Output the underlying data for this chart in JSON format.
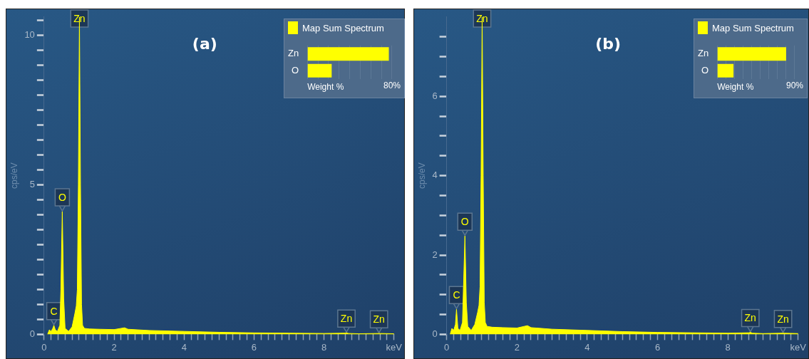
{
  "chart_data": [
    {
      "type": "area",
      "title": "(a)",
      "ylabel": "cps/eV",
      "xlim": [
        0,
        10
      ],
      "xticks": [
        0,
        {
          "value": 0.2,
          "label": null
        },
        {
          "value": 0.4,
          "label": null
        },
        {
          "value": 0.6,
          "label": null
        },
        {
          "value": 0.8,
          "label": null
        },
        {
          "value": 1,
          "label": null
        },
        {
          "value": 1.2,
          "label": null
        },
        {
          "value": 1.4,
          "label": null
        },
        {
          "value": 1.6,
          "label": null
        },
        {
          "value": 1.8,
          "label": null
        },
        2,
        {
          "value": 2.2,
          "label": null
        },
        {
          "value": 2.4,
          "label": null
        },
        {
          "value": 2.6,
          "label": null
        },
        {
          "value": 2.8,
          "label": null
        },
        {
          "value": 3,
          "label": null
        },
        {
          "value": 3.2,
          "label": null
        },
        {
          "value": 3.4,
          "label": null
        },
        {
          "value": 3.6,
          "label": null
        },
        {
          "value": 3.8,
          "label": null
        },
        4,
        {
          "value": 4.2,
          "label": null
        },
        {
          "value": 4.4,
          "label": null
        },
        {
          "value": 4.6,
          "label": null
        },
        {
          "value": 4.8,
          "label": null
        },
        {
          "value": 5,
          "label": null
        },
        {
          "value": 5.2,
          "label": null
        },
        {
          "value": 5.4,
          "label": null
        },
        {
          "value": 5.6,
          "label": null
        },
        {
          "value": 5.8,
          "label": null
        },
        6,
        {
          "value": 6.2,
          "label": null
        },
        {
          "value": 6.4,
          "label": null
        },
        {
          "value": 6.6,
          "label": null
        },
        {
          "value": 6.8,
          "label": null
        },
        {
          "value": 7,
          "label": null
        },
        {
          "value": 7.2,
          "label": null
        },
        {
          "value": 7.4,
          "label": null
        },
        {
          "value": 7.6,
          "label": null
        },
        {
          "value": 7.8,
          "label": null
        },
        8,
        {
          "value": 8.2,
          "label": null
        },
        {
          "value": 8.4,
          "label": null
        },
        {
          "value": 8.6,
          "label": null
        },
        {
          "value": 8.8,
          "label": null
        },
        {
          "value": 9,
          "label": null
        },
        {
          "value": 9.2,
          "label": null
        },
        {
          "value": 9.4,
          "label": null
        },
        {
          "value": 9.6,
          "label": null
        },
        {
          "value": 9.8,
          "label": null
        },
        {
          "value": 10,
          "label": "keV"
        }
      ],
      "ylim": [
        0,
        10.6
      ],
      "yticks": [
        0,
        {
          "value": 0.5,
          "label": null
        },
        {
          "value": 1,
          "label": null
        },
        {
          "value": 1.5,
          "label": null
        },
        {
          "value": 2,
          "label": null
        },
        {
          "value": 2.5,
          "label": null
        },
        {
          "value": 3,
          "label": null
        },
        {
          "value": 3.5,
          "label": null
        },
        {
          "value": 4,
          "label": null
        },
        {
          "value": 4.5,
          "label": null
        },
        5,
        {
          "value": 5.5,
          "label": null
        },
        {
          "value": 6,
          "label": null
        },
        {
          "value": 6.5,
          "label": null
        },
        {
          "value": 7,
          "label": null
        },
        {
          "value": 7.5,
          "label": null
        },
        {
          "value": 8,
          "label": null
        },
        {
          "value": 8.5,
          "label": null
        },
        {
          "value": 9,
          "label": null
        },
        {
          "value": 9.5,
          "label": null
        },
        10,
        {
          "value": 10.5,
          "label": null
        }
      ],
      "grid": false,
      "legend": "top right",
      "series": [
        {
          "name": "Map Sum Spectrum",
          "color": "#ffff00",
          "x": [
            0.1,
            0.15,
            0.2,
            0.25,
            0.28,
            0.32,
            0.38,
            0.45,
            0.48,
            0.52,
            0.56,
            0.6,
            0.7,
            0.8,
            0.88,
            0.92,
            0.95,
            0.98,
            1.01,
            1.04,
            1.07,
            1.1,
            1.15,
            1.3,
            1.6,
            2,
            2.3,
            2.4,
            3,
            4,
            5,
            6,
            7,
            8,
            8.6,
            8.64,
            8.7,
            9,
            9.57,
            10
          ],
          "values": [
            0,
            0.15,
            0.1,
            0.2,
            0.3,
            0.15,
            0.1,
            0.3,
            1.5,
            4.1,
            1.2,
            0.2,
            0.1,
            0.25,
            0.7,
            0.95,
            1.5,
            5,
            10.6,
            5,
            1,
            0.3,
            0.2,
            0.18,
            0.17,
            0.16,
            0.22,
            0.17,
            0.13,
            0.1,
            0.07,
            0.05,
            0.04,
            0.03,
            0.04,
            0.05,
            0.03,
            0.02,
            0.03,
            0.02
          ]
        }
      ],
      "annotations": [
        {
          "text": "C",
          "x": 0.28,
          "y": 0.3
        },
        {
          "text": "O",
          "x": 0.52,
          "y": 4.1
        },
        {
          "text": "Zn",
          "x": 1.01,
          "y": 10.6
        },
        {
          "text": "Zn",
          "x": 8.64,
          "y": 0.05
        },
        {
          "text": "Zn",
          "x": 9.57,
          "y": 0.03
        }
      ]
    },
    {
      "type": "bar",
      "orientation": "horizontal",
      "categories": [
        "Zn",
        "O"
      ],
      "values": [
        77,
        23
      ],
      "color": "#ffff00",
      "xlim": [
        0,
        80
      ],
      "xticks": [
        {
          "value": 0,
          "label": null
        },
        {
          "value": 10,
          "label": null
        },
        {
          "value": 20,
          "label": null
        },
        {
          "value": 30,
          "label": null
        },
        {
          "value": 40,
          "label": null
        },
        {
          "value": 50,
          "label": null
        },
        {
          "value": 60,
          "label": null
        },
        {
          "value": 70,
          "label": null
        },
        {
          "value": 80,
          "label": "80%"
        }
      ],
      "xlabel": "Weight %",
      "grid": "x"
    },
    {
      "type": "area",
      "title": "(b)",
      "ylabel": "cps/eV",
      "xlim": [
        0,
        10
      ],
      "xticks": [
        0,
        {
          "value": 0.2,
          "label": null
        },
        {
          "value": 0.4,
          "label": null
        },
        {
          "value": 0.6,
          "label": null
        },
        {
          "value": 0.8,
          "label": null
        },
        {
          "value": 1,
          "label": null
        },
        {
          "value": 1.2,
          "label": null
        },
        {
          "value": 1.4,
          "label": null
        },
        {
          "value": 1.6,
          "label": null
        },
        {
          "value": 1.8,
          "label": null
        },
        2,
        {
          "value": 2.2,
          "label": null
        },
        {
          "value": 2.4,
          "label": null
        },
        {
          "value": 2.6,
          "label": null
        },
        {
          "value": 2.8,
          "label": null
        },
        {
          "value": 3,
          "label": null
        },
        {
          "value": 3.2,
          "label": null
        },
        {
          "value": 3.4,
          "label": null
        },
        {
          "value": 3.6,
          "label": null
        },
        {
          "value": 3.8,
          "label": null
        },
        4,
        {
          "value": 4.2,
          "label": null
        },
        {
          "value": 4.4,
          "label": null
        },
        {
          "value": 4.6,
          "label": null
        },
        {
          "value": 4.8,
          "label": null
        },
        {
          "value": 5,
          "label": null
        },
        {
          "value": 5.2,
          "label": null
        },
        {
          "value": 5.4,
          "label": null
        },
        {
          "value": 5.6,
          "label": null
        },
        {
          "value": 5.8,
          "label": null
        },
        6,
        {
          "value": 6.2,
          "label": null
        },
        {
          "value": 6.4,
          "label": null
        },
        {
          "value": 6.6,
          "label": null
        },
        {
          "value": 6.8,
          "label": null
        },
        {
          "value": 7,
          "label": null
        },
        {
          "value": 7.2,
          "label": null
        },
        {
          "value": 7.4,
          "label": null
        },
        {
          "value": 7.6,
          "label": null
        },
        {
          "value": 7.8,
          "label": null
        },
        8,
        {
          "value": 8.2,
          "label": null
        },
        {
          "value": 8.4,
          "label": null
        },
        {
          "value": 8.6,
          "label": null
        },
        {
          "value": 8.8,
          "label": null
        },
        {
          "value": 9,
          "label": null
        },
        {
          "value": 9.2,
          "label": null
        },
        {
          "value": 9.4,
          "label": null
        },
        {
          "value": 9.6,
          "label": null
        },
        {
          "value": 9.8,
          "label": null
        },
        {
          "value": 10,
          "label": "keV"
        }
      ],
      "ylim": [
        0,
        8
      ],
      "yticks": [
        0,
        {
          "value": 0.5,
          "label": null
        },
        {
          "value": 1,
          "label": null
        },
        {
          "value": 1.5,
          "label": null
        },
        2,
        {
          "value": 2.5,
          "label": null
        },
        {
          "value": 3,
          "label": null
        },
        {
          "value": 3.5,
          "label": null
        },
        4,
        {
          "value": 4.5,
          "label": null
        },
        {
          "value": 5,
          "label": null
        },
        {
          "value": 5.5,
          "label": null
        },
        6,
        {
          "value": 6.5,
          "label": null
        },
        {
          "value": 7,
          "label": null
        },
        {
          "value": 7.5,
          "label": null
        }
      ],
      "grid": false,
      "legend": "top right",
      "series": [
        {
          "name": "Map Sum Spectrum",
          "color": "#ffff00",
          "x": [
            0.1,
            0.15,
            0.2,
            0.25,
            0.28,
            0.32,
            0.38,
            0.45,
            0.48,
            0.52,
            0.56,
            0.6,
            0.7,
            0.8,
            0.88,
            0.92,
            0.95,
            0.98,
            1.01,
            1.04,
            1.07,
            1.1,
            1.15,
            1.3,
            1.6,
            2,
            2.3,
            2.4,
            3,
            4,
            5,
            6,
            7,
            8,
            8.6,
            8.64,
            8.7,
            9,
            9.57,
            10
          ],
          "values": [
            0,
            0.15,
            0.1,
            0.25,
            0.63,
            0.15,
            0.1,
            0.3,
            1.2,
            2.48,
            0.8,
            0.2,
            0.1,
            0.25,
            0.55,
            0.73,
            1.2,
            4,
            8,
            4,
            0.8,
            0.3,
            0.2,
            0.18,
            0.17,
            0.16,
            0.22,
            0.17,
            0.13,
            0.1,
            0.07,
            0.05,
            0.04,
            0.03,
            0.04,
            0.05,
            0.03,
            0.02,
            0.03,
            0.02
          ]
        }
      ],
      "annotations": [
        {
          "text": "C",
          "x": 0.28,
          "y": 0.63
        },
        {
          "text": "O",
          "x": 0.52,
          "y": 2.48
        },
        {
          "text": "Zn",
          "x": 1.01,
          "y": 8
        },
        {
          "text": "Zn",
          "x": 8.64,
          "y": 0.05
        },
        {
          "text": "Zn",
          "x": 9.57,
          "y": 0.03
        }
      ]
    },
    {
      "type": "bar",
      "orientation": "horizontal",
      "categories": [
        "Zn",
        "O"
      ],
      "values": [
        80,
        19
      ],
      "color": "#ffff00",
      "xlim": [
        0,
        90
      ],
      "xticks": [
        {
          "value": 0,
          "label": null
        },
        {
          "value": 10,
          "label": null
        },
        {
          "value": 20,
          "label": null
        },
        {
          "value": 30,
          "label": null
        },
        {
          "value": 40,
          "label": null
        },
        {
          "value": 50,
          "label": null
        },
        {
          "value": 60,
          "label": null
        },
        {
          "value": 70,
          "label": null
        },
        {
          "value": 80,
          "label": null
        },
        {
          "value": 90,
          "label": "90%"
        }
      ],
      "xlabel": "Weight %",
      "grid": "x"
    }
  ]
}
